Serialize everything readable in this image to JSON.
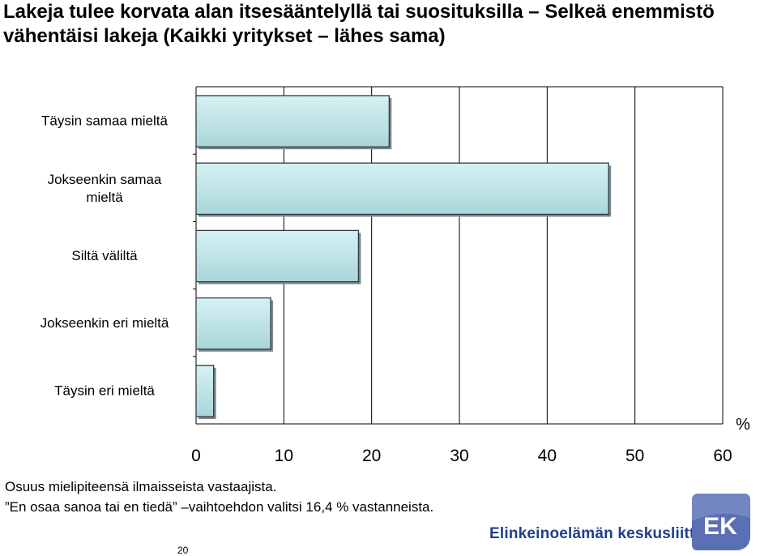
{
  "title": "Lakeja tulee korvata alan itsesääntelyllä tai suosituksilla – Selkeä enemmistö vähentäisi lakeja (Kaikki yritykset – lähes sama)",
  "chart_data": {
    "type": "bar",
    "orientation": "horizontal",
    "categories": [
      "Täysin samaa mieltä",
      "Jokseenkin samaa mieltä",
      "Siltä väliltä",
      "Jokseenkin eri mieltä",
      "Täysin eri mieltä"
    ],
    "values": [
      22,
      47,
      18.5,
      8.5,
      2
    ],
    "xlim": [
      0,
      60
    ],
    "xticks": [
      "0",
      "10",
      "20",
      "30",
      "40",
      "50",
      "60"
    ],
    "xlabel": "%",
    "grid": true,
    "colors": {
      "bar_fill": "#c4e6e8",
      "bar_stroke": "#2f3a44",
      "grid": "#000000"
    }
  },
  "notes": {
    "line1": "Osuus mielipiteensä ilmaisseista vastaajista.",
    "line2": "”En osaa sanoa tai en tiedä” –vaihtoehdon valitsi 16,4 % vastanneista."
  },
  "footer": {
    "page_number": "20",
    "organization": "Elinkeinoelämän keskusliitto",
    "logo_text": "EK",
    "brand_color": "#1f3f8f",
    "logo_color": "#5a6fb4"
  }
}
